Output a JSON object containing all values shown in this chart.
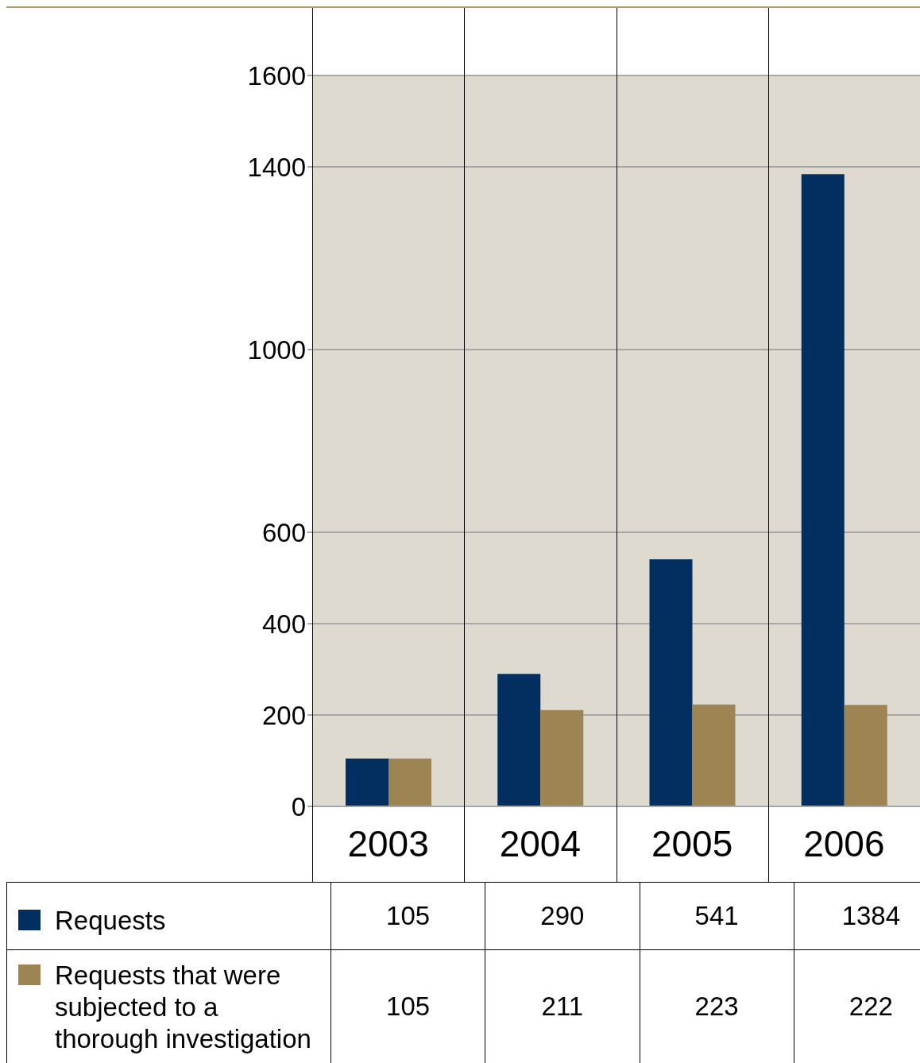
{
  "chart_data": {
    "type": "bar",
    "categories": [
      "2003",
      "2004",
      "2005",
      "2006"
    ],
    "series": [
      {
        "name": "Requests",
        "color": "#032f60",
        "values": [
          105,
          290,
          541,
          1384
        ]
      },
      {
        "name": "Requests that were subjected to a thorough investigation",
        "color": "#9d8553",
        "values": [
          105,
          211,
          223,
          222
        ]
      }
    ],
    "ylim": [
      0,
      1600
    ],
    "yticks": [
      0,
      200,
      400,
      600,
      1000,
      1400,
      1600
    ],
    "grid": "y",
    "legend": "bottom",
    "data_labels": true
  }
}
